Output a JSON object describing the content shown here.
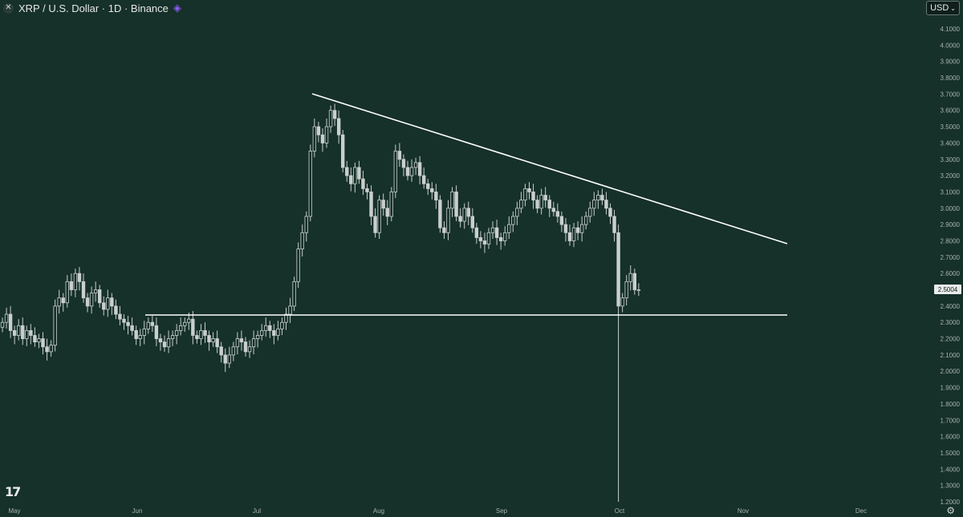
{
  "header": {
    "title": "XRP / U.S. Dollar · 1D · Binance",
    "close_icon": "close-icon",
    "source_logo_icon": "exchange-logo-icon"
  },
  "currency_button": {
    "label": "USD",
    "icon": "chevron-down-icon"
  },
  "tv_logo": "17",
  "settings_icon": "gear-icon",
  "colors": {
    "background": "#16302a",
    "candle": "#c9cfcc",
    "trendline": "#ffffff",
    "axis_text": "#a7b2ae"
  },
  "price_label": "2.5004",
  "chart_data": {
    "type": "candlestick",
    "title": "XRP / U.S. Dollar · 1D · Binance",
    "x_tick_labels": [
      "May",
      "Jun",
      "Jul",
      "Aug",
      "Sep",
      "Oct",
      "Nov",
      "Dec"
    ],
    "y_tick_labels": [
      "1.2000",
      "1.3000",
      "1.4000",
      "1.5000",
      "1.6000",
      "1.7000",
      "1.8000",
      "1.9000",
      "2.0000",
      "2.1000",
      "2.2000",
      "2.3000",
      "2.4000",
      "2.5000",
      "2.6000",
      "2.7000",
      "2.8000",
      "2.9000",
      "3.0000",
      "3.1000",
      "3.2000",
      "3.3000",
      "3.4000",
      "3.5000",
      "3.6000",
      "3.7000",
      "3.8000",
      "3.9000",
      "4.0000",
      "4.1000"
    ],
    "ylim": [
      1.2,
      4.15
    ],
    "y_scale": "linear",
    "start_date": "2025-04-25",
    "last_price": 2.5004,
    "closes": [
      2.3,
      2.35,
      2.25,
      2.22,
      2.28,
      2.2,
      2.25,
      2.22,
      2.18,
      2.2,
      2.15,
      2.12,
      2.16,
      2.4,
      2.45,
      2.42,
      2.55,
      2.5,
      2.6,
      2.55,
      2.45,
      2.4,
      2.48,
      2.5,
      2.42,
      2.38,
      2.45,
      2.4,
      2.35,
      2.32,
      2.3,
      2.28,
      2.25,
      2.2,
      2.22,
      2.26,
      2.3,
      2.28,
      2.2,
      2.18,
      2.15,
      2.2,
      2.22,
      2.25,
      2.28,
      2.3,
      2.32,
      2.22,
      2.2,
      2.25,
      2.22,
      2.18,
      2.2,
      2.15,
      2.1,
      2.05,
      2.1,
      2.15,
      2.2,
      2.18,
      2.12,
      2.15,
      2.2,
      2.22,
      2.25,
      2.28,
      2.25,
      2.22,
      2.26,
      2.3,
      2.35,
      2.4,
      2.55,
      2.75,
      2.85,
      2.95,
      3.35,
      3.5,
      3.45,
      3.4,
      3.5,
      3.6,
      3.55,
      3.45,
      3.25,
      3.2,
      3.15,
      3.25,
      3.18,
      3.12,
      3.1,
      2.95,
      2.85,
      3.05,
      3.0,
      2.95,
      3.1,
      3.35,
      3.3,
      3.25,
      3.2,
      3.25,
      3.28,
      3.2,
      3.15,
      3.12,
      3.1,
      3.05,
      2.88,
      2.85,
      3.0,
      3.1,
      2.95,
      2.92,
      3.0,
      2.95,
      2.88,
      2.82,
      2.8,
      2.78,
      2.85,
      2.88,
      2.82,
      2.8,
      2.85,
      2.9,
      2.95,
      3.0,
      3.05,
      3.12,
      3.1,
      3.05,
      3.0,
      3.08,
      3.05,
      3.0,
      2.98,
      2.95,
      2.9,
      2.85,
      2.8,
      2.88,
      2.85,
      2.9,
      2.95,
      3.0,
      3.05,
      3.08,
      3.05,
      3.0,
      2.95,
      2.85,
      2.4,
      2.45,
      2.55,
      2.6,
      2.5,
      2.5
    ]
  }
}
